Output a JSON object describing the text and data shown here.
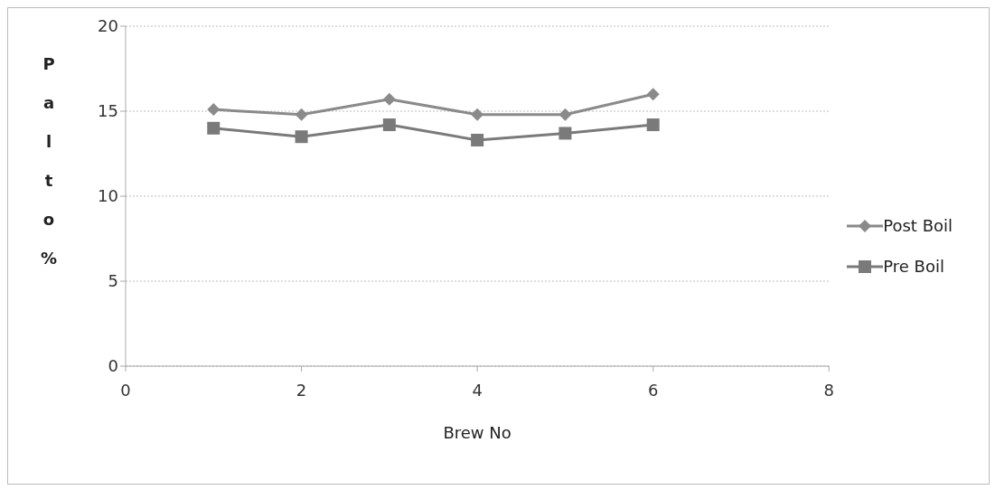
{
  "chart_data": {
    "type": "line",
    "xlabel": "Brew No",
    "ylabel": "Palto %",
    "x": [
      1,
      2,
      3,
      4,
      5,
      6
    ],
    "series": [
      {
        "name": "Post Boil",
        "color": "#8a8a8a",
        "values": [
          15.1,
          14.8,
          15.7,
          14.8,
          14.8,
          16.0
        ],
        "marker": "diamond"
      },
      {
        "name": "Pre Boil",
        "color": "#7a7a7a",
        "values": [
          14.0,
          13.5,
          14.2,
          13.3,
          13.7,
          14.2
        ],
        "marker": "square"
      }
    ],
    "xlim": [
      0,
      8
    ],
    "xticks": [
      0,
      2,
      4,
      6,
      8
    ],
    "ylim": [
      0,
      20
    ],
    "yticks": [
      0,
      5,
      10,
      15,
      20
    ],
    "grid": "y",
    "legend": "right"
  }
}
